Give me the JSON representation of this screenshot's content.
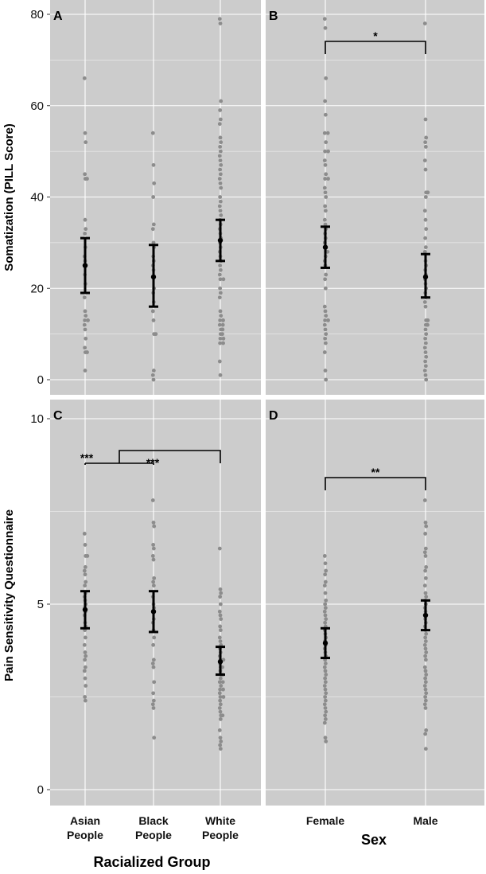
{
  "chart_data": [
    {
      "panel": "A",
      "type": "scatter",
      "ylabel": "Somatization (PILL Score)",
      "ylim": [
        0,
        80
      ],
      "yticks": [
        0,
        20,
        40,
        60,
        80
      ],
      "categories": [
        "Asian\nPeople",
        "Black\nPeople",
        "White\nPeople"
      ],
      "points": [
        [
          66,
          54,
          52,
          45,
          44,
          44,
          35,
          33,
          32,
          29,
          27,
          26,
          25,
          23,
          21,
          18,
          15,
          14,
          13,
          13,
          12,
          11,
          9,
          7,
          6,
          6,
          2
        ],
        [
          54,
          47,
          43,
          40,
          34,
          33,
          30,
          29,
          27,
          26,
          25,
          24,
          20,
          19,
          17,
          15,
          13,
          10,
          10,
          2,
          1,
          0
        ],
        [
          79,
          78,
          61,
          59,
          57,
          56,
          53,
          52,
          51,
          50,
          49,
          48,
          47,
          46,
          45,
          44,
          43,
          42,
          40,
          39,
          38,
          37,
          36,
          35,
          34,
          33,
          32,
          31,
          30,
          29,
          28,
          27,
          26,
          25,
          24,
          23,
          22,
          22,
          20,
          19,
          18,
          15,
          14,
          13,
          13,
          12,
          12,
          11,
          11,
          10,
          10,
          9,
          9,
          8,
          8,
          4,
          1
        ]
      ],
      "mean": [
        25,
        22.5,
        30.5
      ],
      "ci_low": [
        19,
        16,
        26
      ],
      "ci_high": [
        31,
        29.5,
        35
      ],
      "significance": []
    },
    {
      "panel": "B",
      "type": "scatter",
      "xlabel": "",
      "ylim": [
        0,
        80
      ],
      "categories": [
        "Female",
        "Male"
      ],
      "points": [
        [
          79,
          77,
          66,
          61,
          58,
          54,
          54,
          52,
          50,
          50,
          48,
          47,
          45,
          44,
          44,
          42,
          41,
          40,
          38,
          37,
          35,
          34,
          33,
          32,
          31,
          30,
          29,
          28,
          28,
          27,
          26,
          25,
          23,
          22,
          20,
          16,
          15,
          14,
          13,
          13,
          12,
          11,
          10,
          9,
          8,
          6,
          2,
          0
        ],
        [
          78,
          57,
          53,
          52,
          51,
          48,
          46,
          41,
          41,
          40,
          37,
          35,
          33,
          31,
          29,
          28,
          26,
          25,
          24,
          23,
          22,
          21,
          20,
          19,
          18,
          17,
          16,
          13,
          13,
          12,
          12,
          11,
          10,
          9,
          8,
          7,
          6,
          5,
          4,
          3,
          2,
          1,
          0
        ]
      ],
      "mean": [
        29,
        22.5
      ],
      "ci_low": [
        24.5,
        18
      ],
      "ci_high": [
        33.5,
        27.5
      ],
      "significance": [
        {
          "from": 0,
          "to": 1,
          "label": "*"
        }
      ]
    },
    {
      "panel": "C",
      "type": "scatter",
      "ylabel": "Pain Sensitivity Questionnaire",
      "xlabel": "Racialized Group",
      "ylim": [
        0,
        10
      ],
      "yticks": [
        0,
        5,
        10
      ],
      "categories": [
        "Asian\nPeople",
        "Black\nPeople",
        "White\nPeople"
      ],
      "points": [
        [
          6.9,
          6.6,
          6.3,
          6.3,
          6.0,
          5.9,
          5.8,
          5.6,
          5.5,
          5.3,
          5.2,
          5.1,
          5.0,
          4.9,
          4.8,
          4.7,
          4.5,
          4.4,
          4.3,
          4.1,
          3.9,
          3.7,
          3.6,
          3.5,
          3.3,
          3.2,
          3.0,
          2.8,
          2.5,
          2.4
        ],
        [
          7.8,
          7.2,
          7.1,
          6.6,
          6.5,
          6.3,
          6.2,
          5.7,
          5.6,
          5.5,
          5.2,
          5.0,
          4.9,
          4.8,
          4.6,
          4.5,
          4.3,
          4.1,
          3.9,
          3.5,
          3.4,
          3.3,
          2.9,
          2.6,
          2.4,
          2.3,
          2.2,
          1.4
        ],
        [
          6.5,
          5.4,
          5.3,
          5.2,
          5.0,
          4.8,
          4.7,
          4.6,
          4.4,
          4.3,
          4.1,
          4.0,
          3.9,
          3.8,
          3.7,
          3.6,
          3.5,
          3.5,
          3.4,
          3.3,
          3.3,
          3.2,
          3.1,
          3.1,
          3.0,
          2.9,
          2.9,
          2.8,
          2.7,
          2.7,
          2.6,
          2.5,
          2.5,
          2.4,
          2.3,
          2.2,
          2.1,
          2.0,
          2.0,
          1.9,
          1.6,
          1.4,
          1.3,
          1.2,
          1.1
        ]
      ],
      "mean": [
        4.85,
        4.8,
        3.45
      ],
      "ci_low": [
        4.35,
        4.25,
        3.1
      ],
      "ci_high": [
        5.35,
        5.35,
        3.85
      ],
      "significance": [
        {
          "from": 0,
          "to": 1,
          "label": "***"
        },
        {
          "from": 0.35,
          "to": 2,
          "label": "***"
        }
      ]
    },
    {
      "panel": "D",
      "type": "scatter",
      "xlabel": "Sex",
      "ylim": [
        0,
        10
      ],
      "categories": [
        "Female",
        "Male"
      ],
      "points": [
        [
          6.3,
          6.1,
          5.9,
          5.8,
          5.6,
          5.5,
          5.3,
          5.1,
          5.0,
          4.9,
          4.8,
          4.7,
          4.6,
          4.5,
          4.4,
          4.3,
          4.2,
          4.1,
          4.0,
          3.9,
          3.8,
          3.7,
          3.6,
          3.5,
          3.4,
          3.3,
          3.2,
          3.1,
          3.0,
          2.9,
          2.8,
          2.7,
          2.6,
          2.5,
          2.4,
          2.3,
          2.2,
          2.1,
          2.0,
          1.9,
          1.8,
          1.4,
          1.3
        ],
        [
          7.8,
          7.2,
          7.1,
          6.9,
          6.5,
          6.4,
          6.3,
          6.0,
          5.9,
          5.7,
          5.5,
          5.3,
          5.2,
          5.1,
          5.0,
          4.9,
          4.8,
          4.7,
          4.6,
          4.5,
          4.4,
          4.3,
          4.2,
          4.1,
          4.0,
          3.9,
          3.8,
          3.7,
          3.6,
          3.5,
          3.3,
          3.2,
          3.1,
          3.0,
          2.9,
          2.8,
          2.7,
          2.6,
          2.5,
          2.4,
          2.3,
          2.2,
          1.6,
          1.5,
          1.1
        ]
      ],
      "mean": [
        3.95,
        4.7
      ],
      "ci_low": [
        3.55,
        4.3
      ],
      "ci_high": [
        4.35,
        5.1
      ],
      "significance": [
        {
          "from": 0,
          "to": 1,
          "label": "**"
        }
      ]
    }
  ],
  "icons": {
    "mean": "filled-circle",
    "observation": "grey-dot"
  },
  "colors": {
    "panel_background": "#cccccc",
    "grid": "#ffffff",
    "points": "#8c8c8c",
    "error_bar": "#000000"
  }
}
